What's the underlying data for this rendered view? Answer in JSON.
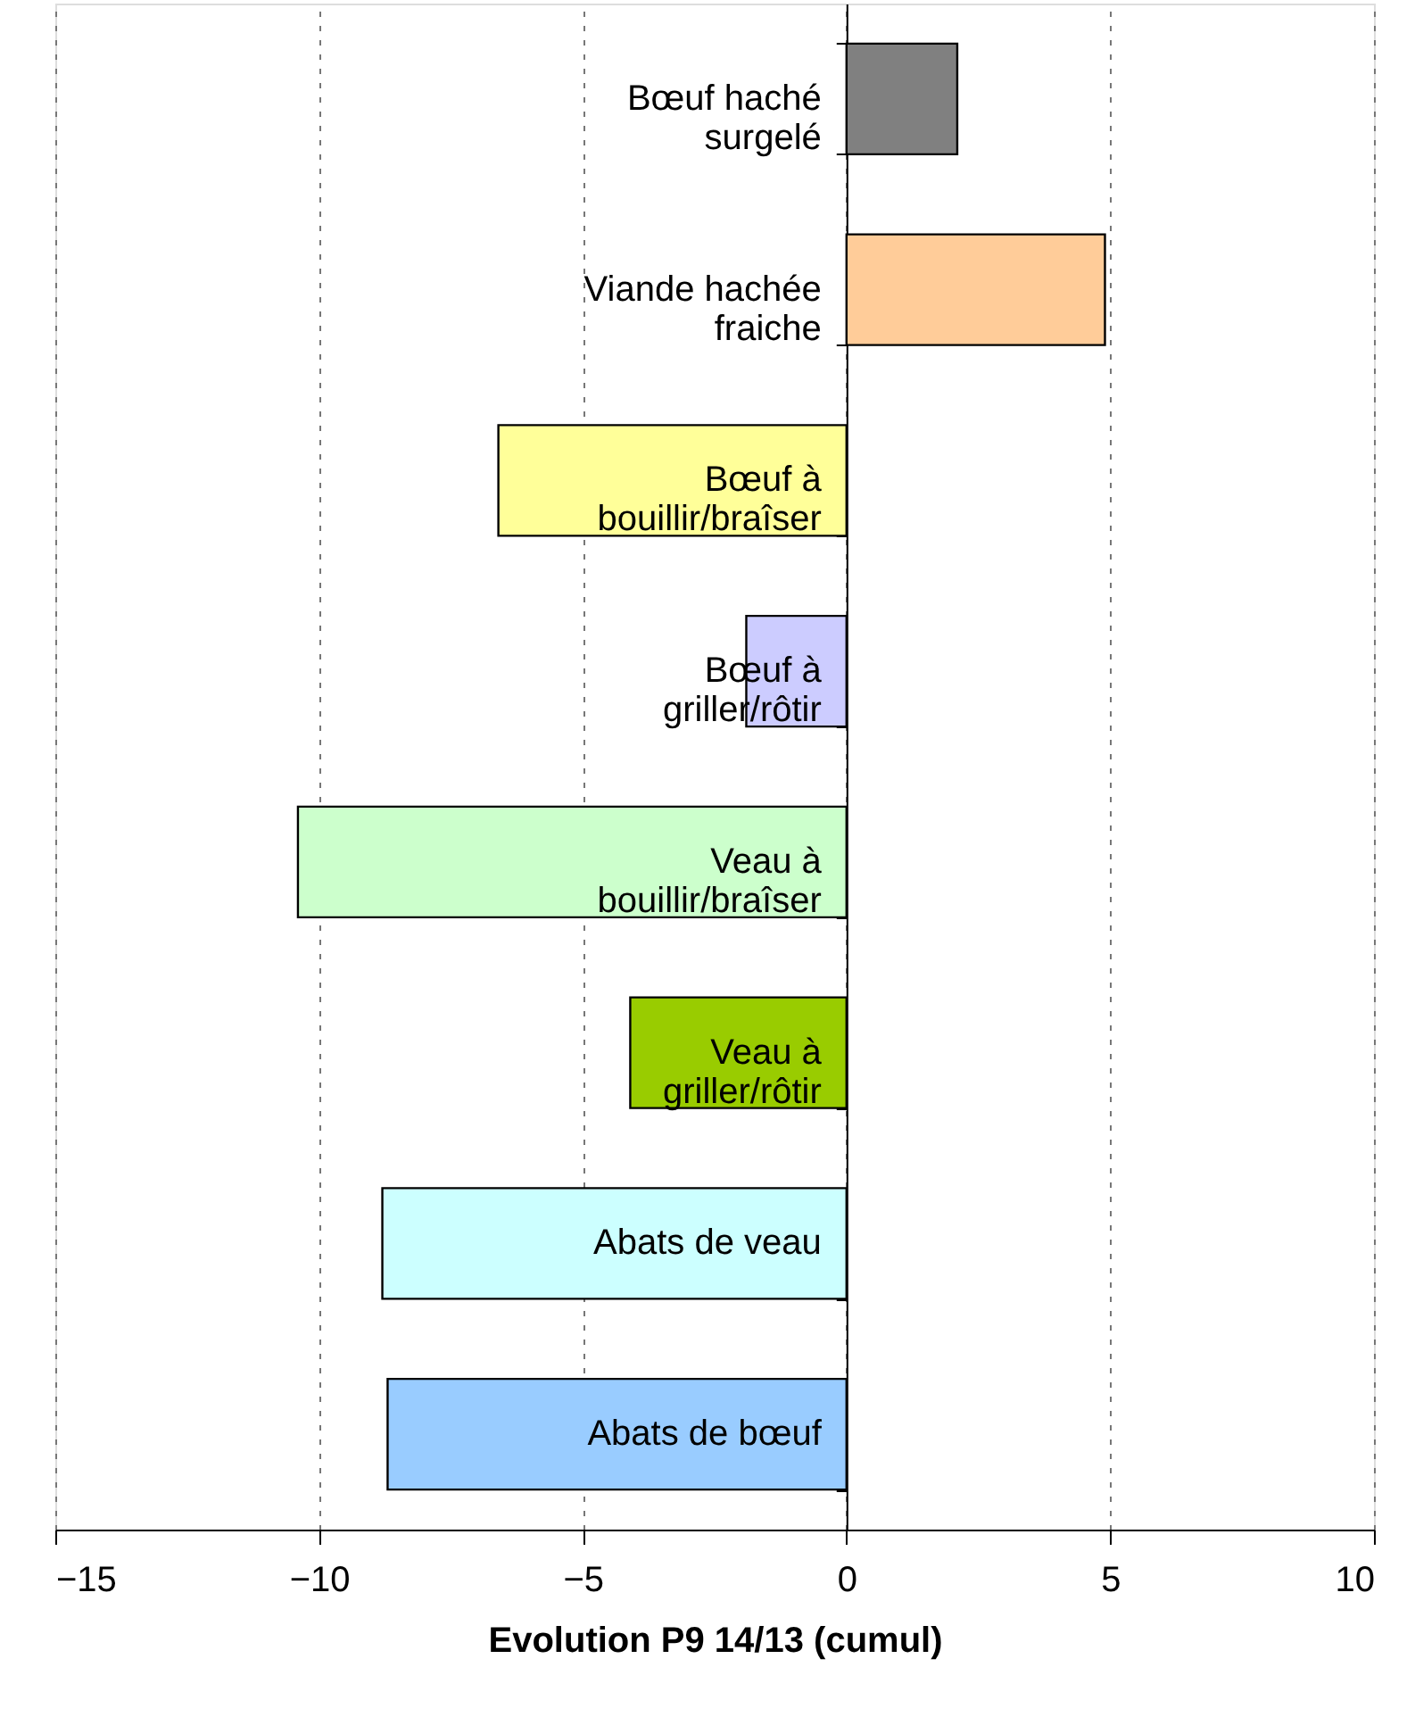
{
  "chart_data": {
    "type": "bar",
    "orientation": "horizontal",
    "xlabel": "Evolution P9 14/13 (cumul)",
    "categories": [
      "Bœuf haché\nsurgelé",
      "Viande hachée\nfraiche",
      "Bœuf à\nbouillir/braîser",
      "Bœuf à\ngriller/rôtir",
      "Veau à\nbouillir/braîser",
      "Veau à\ngriller/rôtir",
      "Abats de veau",
      "Abats de bœuf"
    ],
    "values": [
      2.1,
      4.9,
      -6.6,
      -1.9,
      -10.4,
      -4.1,
      -8.8,
      -8.7
    ],
    "colors": [
      "#808080",
      "#ffcc99",
      "#ffff99",
      "#ccccff",
      "#ccffcc",
      "#99cc00",
      "#ccffff",
      "#99ccff"
    ],
    "xlim": [
      -15,
      10
    ],
    "xticks": [
      -15,
      -10,
      -5,
      0,
      5,
      10
    ],
    "grid": "x",
    "legend": false
  }
}
